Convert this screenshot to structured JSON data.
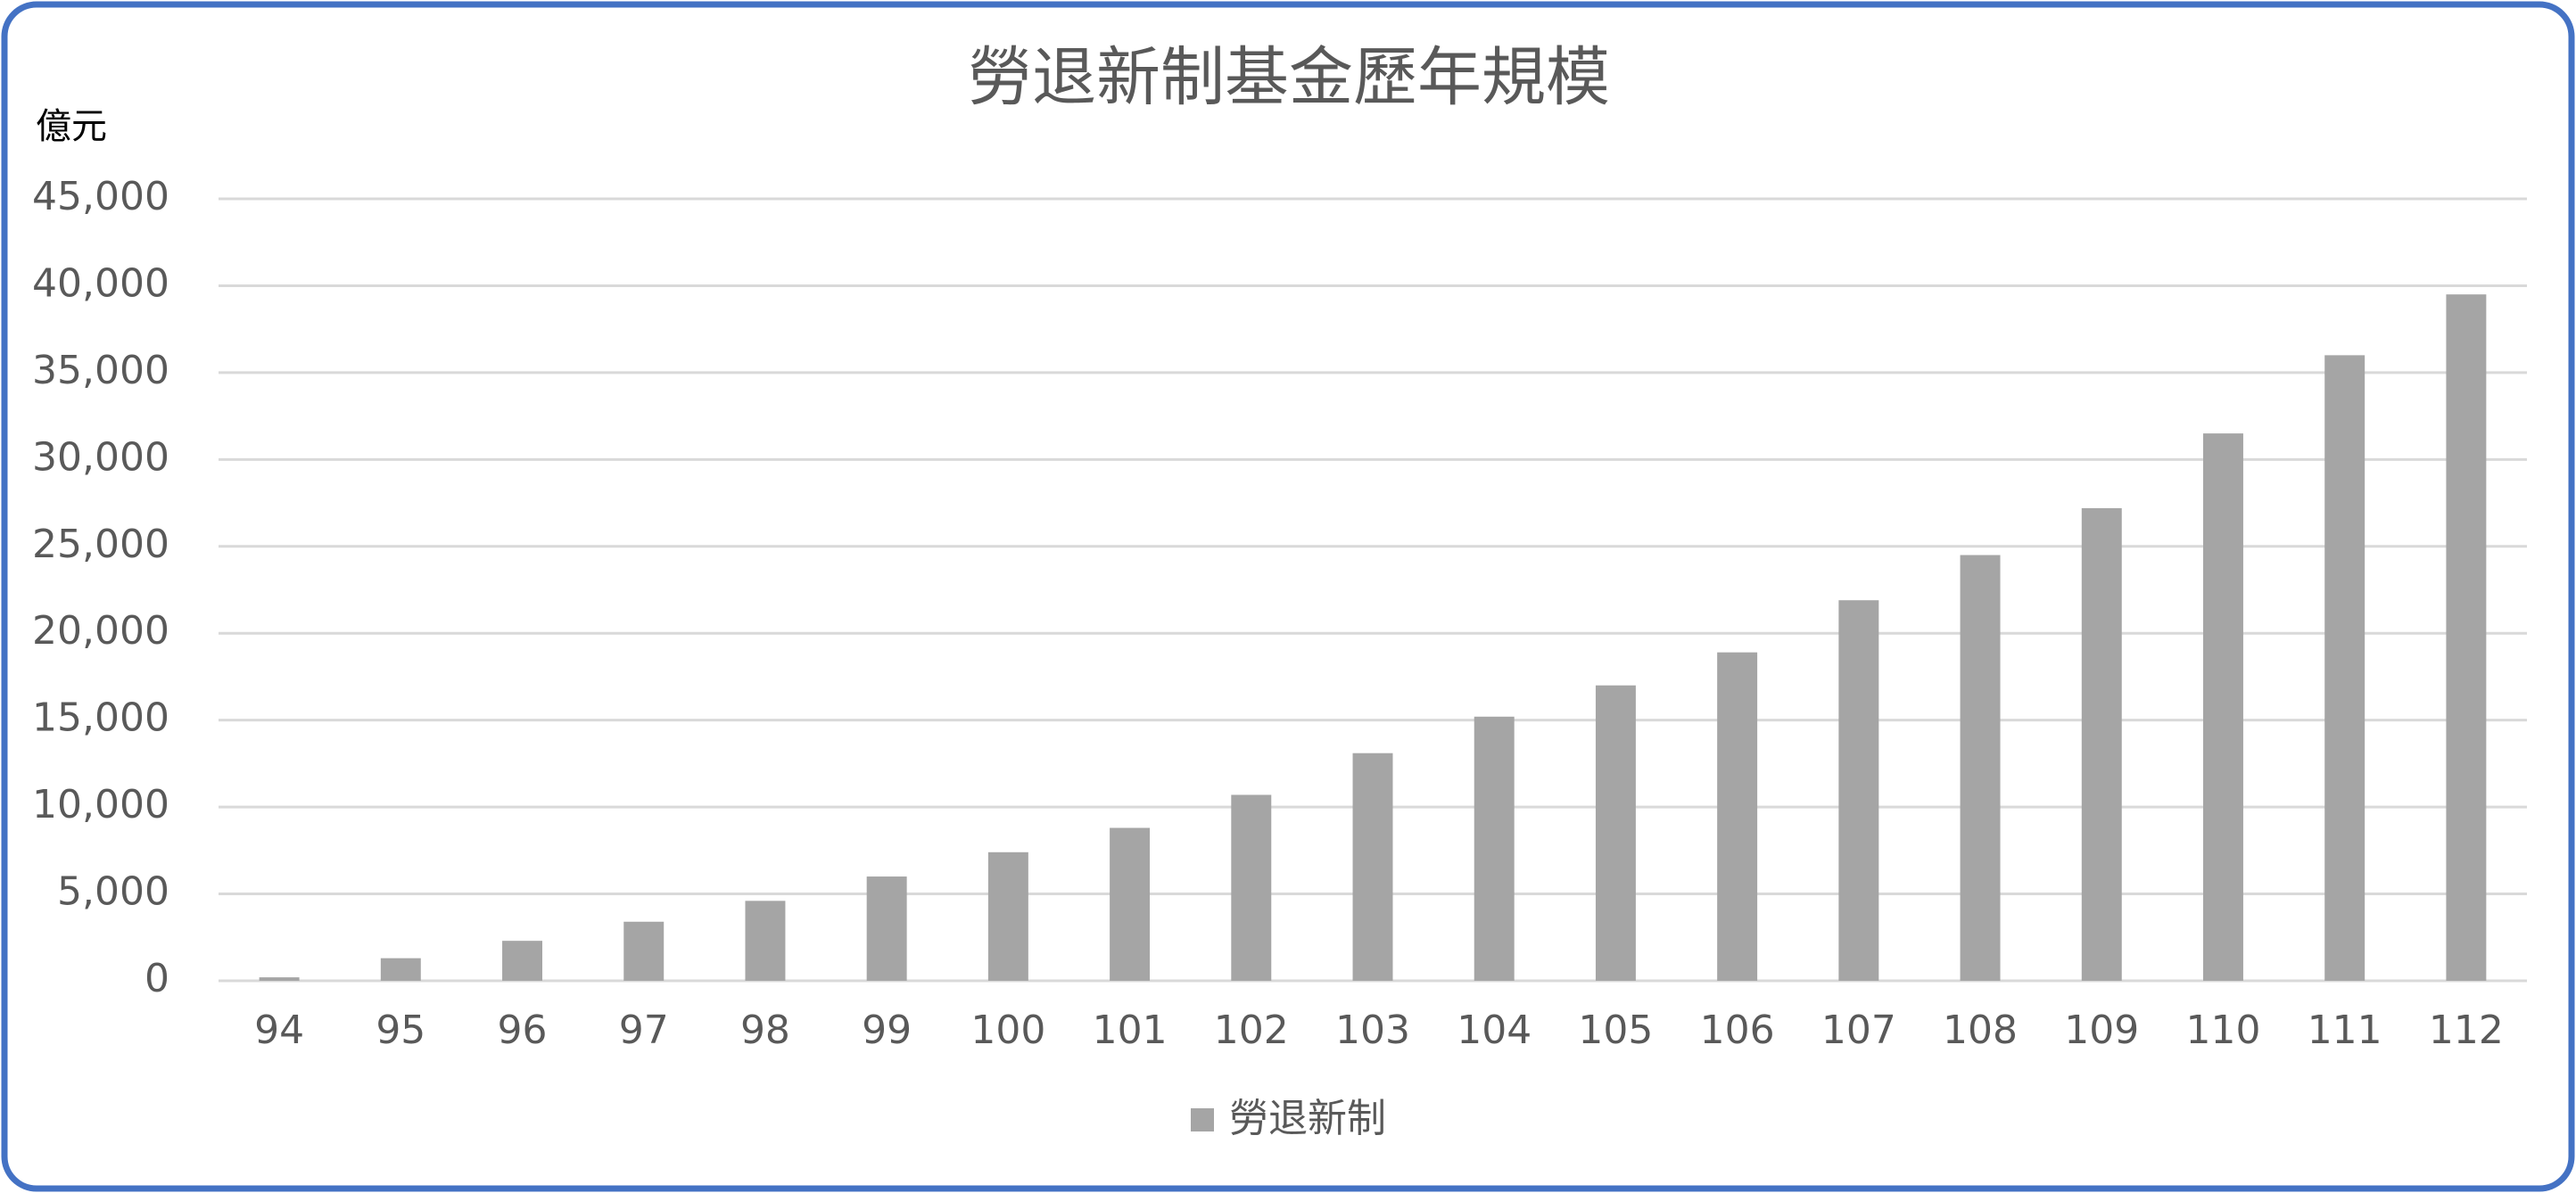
{
  "chart_data": {
    "type": "bar",
    "title": "勞退新制基金歷年規模",
    "y_unit_label": "億元",
    "categories": [
      "94",
      "95",
      "96",
      "97",
      "98",
      "99",
      "100",
      "101",
      "102",
      "103",
      "104",
      "105",
      "106",
      "107",
      "108",
      "109",
      "110",
      "111",
      "112"
    ],
    "series": [
      {
        "name": "勞退新制",
        "color": "#a5a5a5",
        "values": [
          200,
          1300,
          2300,
          3400,
          4600,
          6000,
          7400,
          8800,
          10700,
          13100,
          15200,
          17000,
          18900,
          21900,
          24500,
          27200,
          31500,
          36000,
          39500
        ]
      }
    ],
    "ylim": [
      0,
      45000
    ],
    "yticks": [
      0,
      {
        "value": 5000,
        "label": "5,000"
      },
      {
        "value": 10000,
        "label": "10,000"
      },
      {
        "value": 15000,
        "label": "15,000"
      },
      {
        "value": 20000,
        "label": "20,000"
      },
      {
        "value": 25000,
        "label": "25,000"
      },
      {
        "value": 30000,
        "label": "30,000"
      },
      {
        "value": 35000,
        "label": "35,000"
      },
      {
        "value": 40000,
        "label": "40,000"
      },
      {
        "value": 45000,
        "label": "45,000"
      }
    ],
    "grid": true,
    "legend": "bottom"
  }
}
